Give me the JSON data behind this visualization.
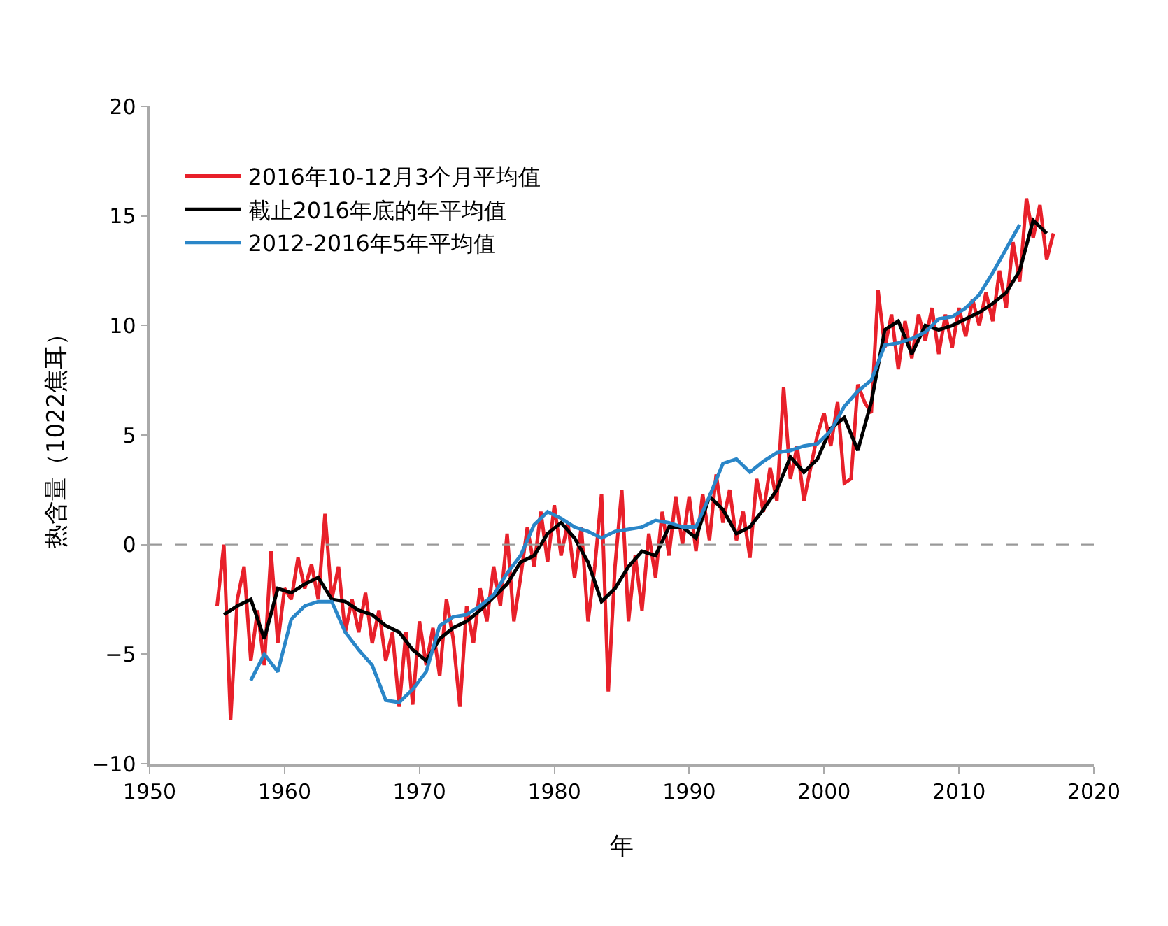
{
  "chart_data": {
    "type": "line",
    "xlabel": "年",
    "ylabel": "热含量（1022焦耳）",
    "xlim": [
      1950,
      2020
    ],
    "xticks": [
      1950,
      1960,
      1970,
      1980,
      1990,
      2000,
      2010,
      2020
    ],
    "ylim": [
      -10,
      20
    ],
    "yticks": [
      {
        "value": -10,
        "label": "−10"
      },
      {
        "value": -5,
        "label": "−5"
      },
      0,
      5,
      10,
      15,
      20
    ],
    "legend": "top left",
    "marker": "none",
    "line_style": "solid",
    "ref_lines": [
      {
        "axis": "y",
        "value": 0,
        "label": null,
        "color": "#999999",
        "line_style": "dashed"
      }
    ],
    "series": [
      {
        "name": "2016年10-12月3个月平均值",
        "color": "#e8202a",
        "x": [
          1955.0,
          1955.5,
          1956.0,
          1956.5,
          1957.0,
          1957.5,
          1958.0,
          1958.5,
          1959.0,
          1959.5,
          1960.0,
          1960.5,
          1961.0,
          1961.5,
          1962.0,
          1962.5,
          1963.0,
          1963.5,
          1964.0,
          1964.5,
          1965.0,
          1965.5,
          1966.0,
          1966.5,
          1967.0,
          1967.5,
          1968.0,
          1968.5,
          1969.0,
          1969.5,
          1970.0,
          1970.5,
          1971.0,
          1971.5,
          1972.0,
          1972.5,
          1973.0,
          1973.5,
          1974.0,
          1974.5,
          1975.0,
          1975.5,
          1976.0,
          1976.5,
          1977.0,
          1977.5,
          1978.0,
          1978.5,
          1979.0,
          1979.5,
          1980.0,
          1980.5,
          1981.0,
          1981.5,
          1982.0,
          1982.5,
          1983.0,
          1983.5,
          1984.0,
          1984.5,
          1985.0,
          1985.5,
          1986.0,
          1986.5,
          1987.0,
          1987.5,
          1988.0,
          1988.5,
          1989.0,
          1989.5,
          1990.0,
          1990.5,
          1991.0,
          1991.5,
          1992.0,
          1992.5,
          1993.0,
          1993.5,
          1994.0,
          1994.5,
          1995.0,
          1995.5,
          1996.0,
          1996.5,
          1997.0,
          1997.5,
          1998.0,
          1998.5,
          1999.0,
          1999.5,
          2000.0,
          2000.5,
          2001.0,
          2001.5,
          2002.0,
          2002.5,
          2003.0,
          2003.5,
          2004.0,
          2004.5,
          2005.0,
          2005.5,
          2006.0,
          2006.5,
          2007.0,
          2007.5,
          2008.0,
          2008.5,
          2009.0,
          2009.5,
          2010.0,
          2010.5,
          2011.0,
          2011.5,
          2012.0,
          2012.5,
          2013.0,
          2013.5,
          2014.0,
          2014.5,
          2015.0,
          2015.5,
          2016.0,
          2016.5,
          2017.0
        ],
        "values": [
          -2.8,
          0.0,
          -8.0,
          -2.5,
          -1.0,
          -5.3,
          -3.0,
          -5.5,
          -0.3,
          -4.5,
          -2.0,
          -2.5,
          -0.6,
          -2.0,
          -0.9,
          -2.5,
          1.4,
          -2.5,
          -1.0,
          -4.0,
          -2.5,
          -4.0,
          -2.2,
          -4.5,
          -3.0,
          -5.3,
          -4.0,
          -7.4,
          -4.0,
          -7.3,
          -3.5,
          -5.5,
          -3.8,
          -6.0,
          -2.5,
          -4.3,
          -7.4,
          -2.8,
          -4.5,
          -2.0,
          -3.5,
          -1.0,
          -2.8,
          0.5,
          -3.5,
          -1.5,
          0.8,
          -1.0,
          1.5,
          -0.8,
          1.8,
          -0.5,
          1.0,
          -1.5,
          0.8,
          -3.5,
          -1.0,
          2.3,
          -6.7,
          -1.0,
          2.5,
          -3.5,
          -0.5,
          -3.0,
          0.5,
          -1.5,
          1.5,
          -0.5,
          2.2,
          0.0,
          2.2,
          -0.3,
          2.3,
          0.2,
          3.2,
          1.0,
          2.5,
          0.2,
          1.5,
          -0.6,
          3.0,
          1.5,
          3.5,
          2.0,
          7.2,
          3.0,
          4.5,
          2.0,
          3.5,
          5.0,
          6.0,
          4.5,
          6.5,
          2.8,
          3.0,
          7.3,
          6.5,
          6.0,
          11.6,
          9.0,
          10.5,
          8.0,
          10.2,
          8.5,
          10.5,
          9.3,
          10.8,
          8.7,
          10.5,
          9.0,
          10.8,
          9.5,
          11.2,
          10.0,
          11.5,
          10.2,
          12.5,
          10.8,
          13.8,
          12.0,
          15.8,
          14.0,
          15.5,
          13.0,
          14.2
        ]
      },
      {
        "name": "截止2016年底的年平均值",
        "color": "#000000",
        "x": [
          1955.5,
          1956.5,
          1957.5,
          1958.5,
          1959.5,
          1960.5,
          1961.5,
          1962.5,
          1963.5,
          1964.5,
          1965.5,
          1966.5,
          1967.5,
          1968.5,
          1969.5,
          1970.5,
          1971.5,
          1972.5,
          1973.5,
          1974.5,
          1975.5,
          1976.5,
          1977.5,
          1978.5,
          1979.5,
          1980.5,
          1981.5,
          1982.5,
          1983.5,
          1984.5,
          1985.5,
          1986.5,
          1987.5,
          1988.5,
          1989.5,
          1990.5,
          1991.5,
          1992.5,
          1993.5,
          1994.5,
          1995.5,
          1996.5,
          1997.5,
          1998.5,
          1999.5,
          2000.5,
          2001.5,
          2002.5,
          2003.5,
          2004.5,
          2005.5,
          2006.5,
          2007.5,
          2008.5,
          2009.5,
          2010.5,
          2011.5,
          2012.5,
          2013.5,
          2014.5,
          2015.5,
          2016.5
        ],
        "values": [
          -3.2,
          -2.8,
          -2.5,
          -4.3,
          -2.0,
          -2.2,
          -1.8,
          -1.5,
          -2.5,
          -2.6,
          -3.0,
          -3.2,
          -3.7,
          -4.0,
          -4.8,
          -5.3,
          -4.3,
          -3.8,
          -3.5,
          -3.0,
          -2.4,
          -1.8,
          -0.8,
          -0.5,
          0.5,
          1.0,
          0.3,
          -0.8,
          -2.6,
          -2.0,
          -1.0,
          -0.3,
          -0.5,
          0.8,
          0.8,
          0.3,
          2.2,
          1.6,
          0.5,
          0.8,
          1.6,
          2.5,
          4.0,
          3.3,
          3.9,
          5.3,
          5.8,
          4.3,
          6.5,
          9.8,
          10.2,
          8.7,
          10.0,
          9.8,
          10.0,
          10.3,
          10.6,
          11.0,
          11.5,
          12.5,
          14.8,
          14.2
        ]
      },
      {
        "name": "2012-2016年5年平均值",
        "color": "#2a86c8",
        "x": [
          1957.5,
          1958.5,
          1959.5,
          1960.5,
          1961.5,
          1962.5,
          1963.5,
          1964.5,
          1965.5,
          1966.5,
          1967.5,
          1968.5,
          1969.5,
          1970.5,
          1971.5,
          1972.5,
          1973.5,
          1974.5,
          1975.5,
          1976.5,
          1977.5,
          1978.5,
          1979.5,
          1980.5,
          1981.5,
          1982.5,
          1983.5,
          1984.5,
          1985.5,
          1986.5,
          1987.5,
          1988.5,
          1989.5,
          1990.5,
          1991.5,
          1992.5,
          1993.5,
          1994.5,
          1995.5,
          1996.5,
          1997.5,
          1998.5,
          1999.5,
          2000.5,
          2001.5,
          2002.5,
          2003.5,
          2004.5,
          2005.5,
          2006.5,
          2007.5,
          2008.5,
          2009.5,
          2010.5,
          2011.5,
          2012.5,
          2013.5,
          2014.5
        ],
        "values": [
          -6.2,
          -5.0,
          -5.8,
          -3.4,
          -2.8,
          -2.6,
          -2.6,
          -4.0,
          -4.8,
          -5.5,
          -7.1,
          -7.2,
          -6.6,
          -5.8,
          -3.7,
          -3.3,
          -3.2,
          -2.8,
          -2.3,
          -1.3,
          -0.5,
          0.9,
          1.5,
          1.2,
          0.8,
          0.6,
          0.3,
          0.6,
          0.7,
          0.8,
          1.1,
          1.0,
          0.8,
          0.8,
          2.2,
          3.7,
          3.9,
          3.3,
          3.8,
          4.2,
          4.3,
          4.5,
          4.6,
          5.2,
          6.3,
          7.0,
          7.5,
          9.1,
          9.2,
          9.4,
          9.7,
          10.3,
          10.4,
          10.8,
          11.4,
          12.4,
          13.5,
          14.6
        ]
      }
    ]
  }
}
